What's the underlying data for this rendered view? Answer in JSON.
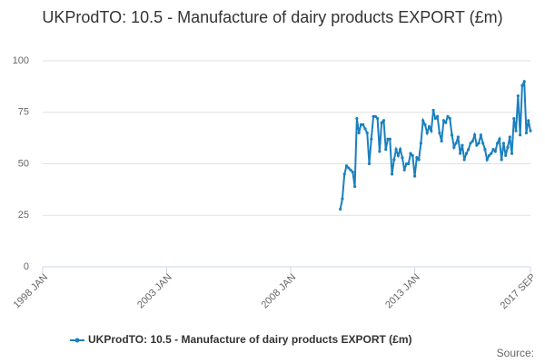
{
  "chart_data": {
    "type": "line",
    "title": "UKProdTO: 10.5 - Manufacture of dairy products EXPORT (£m)",
    "source": "Source:",
    "xlim": [
      "1998 JAN",
      "2017 SEP"
    ],
    "xticks": [
      "1998 JAN",
      "2003 JAN",
      "2008 JAN",
      "2013 JAN",
      "2017 SEP"
    ],
    "ylim": [
      0,
      100
    ],
    "yticks": [
      0,
      25,
      50,
      75,
      100
    ],
    "grid": true,
    "x": [
      "2010 JAN",
      "2010 FEB",
      "2010 MAR",
      "2010 APR",
      "2010 MAY",
      "2010 JUN",
      "2010 JUL",
      "2010 AUG",
      "2010 SEP",
      "2010 OCT",
      "2010 NOV",
      "2010 DEC",
      "2011 JAN",
      "2011 FEB",
      "2011 MAR",
      "2011 APR",
      "2011 MAY",
      "2011 JUN",
      "2011 JUL",
      "2011 AUG",
      "2011 SEP",
      "2011 OCT",
      "2011 NOV",
      "2011 DEC",
      "2012 JAN",
      "2012 FEB",
      "2012 MAR",
      "2012 APR",
      "2012 MAY",
      "2012 JUN",
      "2012 JUL",
      "2012 AUG",
      "2012 SEP",
      "2012 OCT",
      "2012 NOV",
      "2012 DEC",
      "2013 JAN",
      "2013 FEB",
      "2013 MAR",
      "2013 APR",
      "2013 MAY",
      "2013 JUN",
      "2013 JUL",
      "2013 AUG",
      "2013 SEP",
      "2013 OCT",
      "2013 NOV",
      "2013 DEC",
      "2014 JAN",
      "2014 FEB",
      "2014 MAR",
      "2014 APR",
      "2014 MAY",
      "2014 JUN",
      "2014 JUL",
      "2014 AUG",
      "2014 SEP",
      "2014 OCT",
      "2014 NOV",
      "2014 DEC",
      "2015 JAN",
      "2015 FEB",
      "2015 MAR",
      "2015 APR",
      "2015 MAY",
      "2015 JUN",
      "2015 JUL",
      "2015 AUG",
      "2015 SEP",
      "2015 OCT",
      "2015 NOV",
      "2015 DEC",
      "2016 JAN",
      "2016 FEB",
      "2016 MAR",
      "2016 APR",
      "2016 MAY",
      "2016 JUN",
      "2016 JUL",
      "2016 AUG",
      "2016 SEP",
      "2016 OCT",
      "2016 NOV",
      "2016 DEC",
      "2017 JAN",
      "2017 FEB",
      "2017 MAR",
      "2017 APR",
      "2017 MAY",
      "2017 JUN",
      "2017 JUL",
      "2017 AUG",
      "2017 SEP"
    ],
    "series": [
      {
        "name": "UKProdTO: 10.5 - Manufacture of dairy products EXPORT (£m)",
        "color": "#1a80bf",
        "values": [
          28,
          33,
          45,
          49,
          48,
          47,
          46,
          39,
          72,
          65,
          69,
          69,
          67,
          65,
          50,
          62,
          73,
          73,
          72,
          56,
          70,
          71,
          57,
          62,
          62,
          45,
          52,
          57,
          54,
          57,
          53,
          47,
          50,
          50,
          55,
          54,
          44,
          53,
          52,
          60,
          71,
          69,
          65,
          68,
          66,
          76,
          72,
          73,
          65,
          61,
          71,
          70,
          73,
          72,
          64,
          58,
          60,
          63,
          55,
          59,
          52,
          55,
          57,
          60,
          61,
          64,
          59,
          60,
          64,
          60,
          57,
          52,
          54,
          55,
          57,
          56,
          60,
          62,
          52,
          60,
          54,
          58,
          63,
          55,
          72,
          66,
          83,
          64,
          88,
          90,
          65,
          71,
          66
        ]
      }
    ]
  }
}
